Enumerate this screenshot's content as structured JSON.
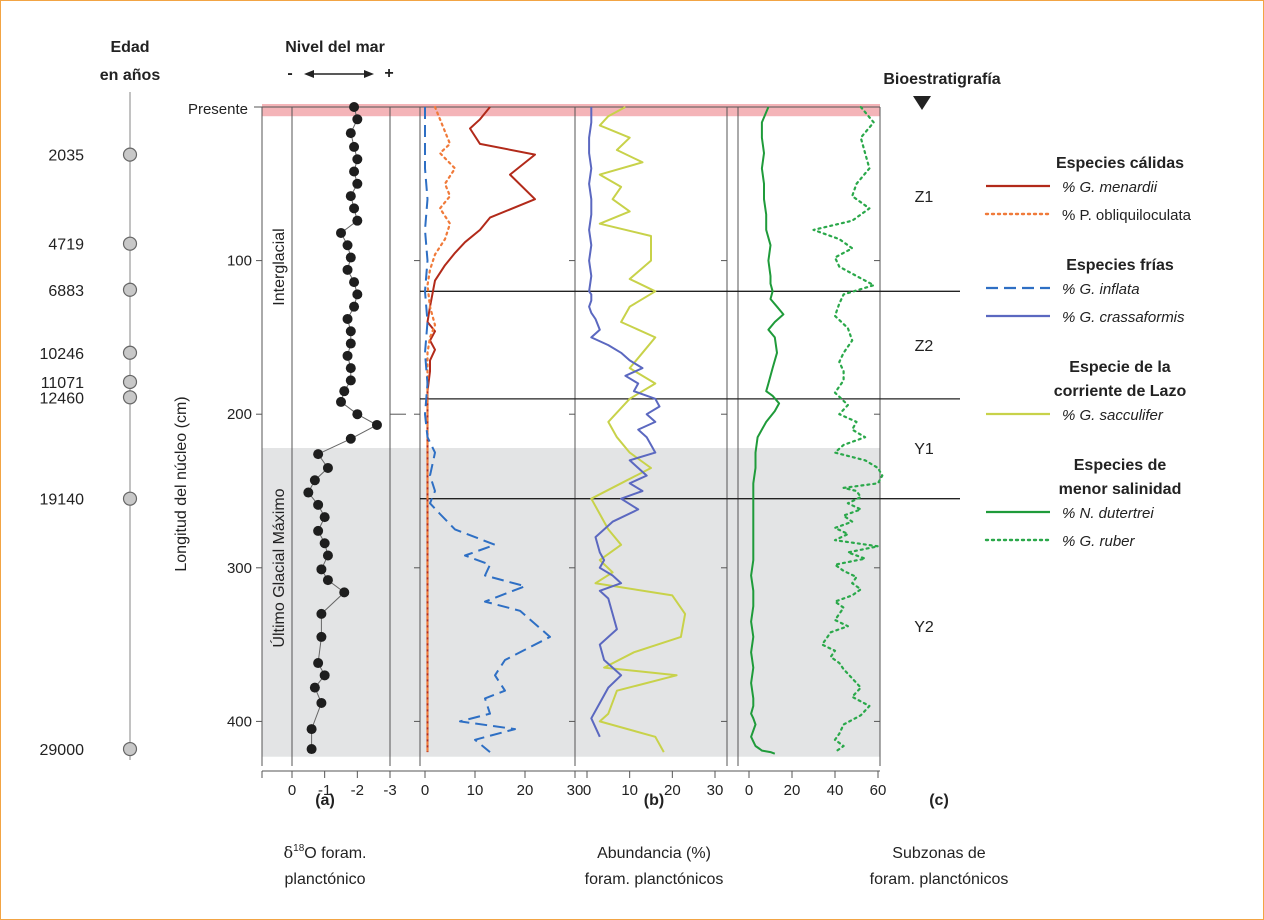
{
  "labels": {
    "age_header_1": "Edad",
    "age_header_2": "en años",
    "sea_level_header": "Nivel del mar",
    "sea_minus": "-",
    "sea_plus": "+",
    "bio_header": "Bioestratigrafía",
    "y_axis": "Longitud del núcleo (cm)",
    "presente": "Presente",
    "interglacial": "Interglacial",
    "lgm": "Último Glacial Máximo",
    "panel_a": "(a)",
    "panel_b": "(b)",
    "panel_c": "(c)",
    "xlabel_a_1": "δ",
    "xlabel_a_sup": "18",
    "xlabel_a_2": "O foram.",
    "xlabel_a_3": "planctónico",
    "xlabel_b_1": "Abundancia (%)",
    "xlabel_b_2": "foram. planctónicos",
    "xlabel_c_1": "Subzonas de",
    "xlabel_c_2": "foram. planctónicos"
  },
  "legend": {
    "groups": [
      {
        "title": [
          "Especies cálidas"
        ],
        "items": [
          {
            "label": "% G. menardii",
            "color": "#b22a1a",
            "style": "solid",
            "italic": true
          },
          {
            "label": "% P. obliquiloculata",
            "color": "#f07a3a",
            "style": "dotted",
            "italic": false
          }
        ]
      },
      {
        "title": [
          "Especies frías"
        ],
        "items": [
          {
            "label": "% G. inflata",
            "color": "#2e6fc4",
            "style": "dashed",
            "italic": true
          },
          {
            "label": "% G. crassaformis",
            "color": "#5b68c0",
            "style": "solid",
            "italic": true
          }
        ]
      },
      {
        "title": [
          "Especie de la",
          "corriente de Lazo"
        ],
        "items": [
          {
            "label": "% G. sacculifer",
            "color": "#c8d24a",
            "style": "solid",
            "italic": true
          }
        ]
      },
      {
        "title": [
          "Especies de",
          "menor salinidad"
        ],
        "items": [
          {
            "label": "% N. dutertrei",
            "color": "#1f9b3a",
            "style": "solid",
            "italic": true
          },
          {
            "label": "% G. ruber",
            "color": "#2aa84a",
            "style": "dotted",
            "italic": true
          }
        ]
      }
    ]
  },
  "chart_data": {
    "type": "line",
    "y_axis": {
      "label": "Longitud del núcleo (cm)",
      "range": [
        0,
        430
      ],
      "ticks": [
        100,
        200,
        300,
        400
      ],
      "tick_labels": [
        "100",
        "200",
        "300",
        "400"
      ],
      "inverted": true
    },
    "ages": [
      {
        "age": "2035",
        "depth": 31
      },
      {
        "age": "4719",
        "depth": 89
      },
      {
        "age": "6883",
        "depth": 119
      },
      {
        "age": "10246",
        "depth": 160
      },
      {
        "age": "11071",
        "depth": 179
      },
      {
        "age": "12460",
        "depth": 189
      },
      {
        "age": "19140",
        "depth": 255
      },
      {
        "age": "29000",
        "depth": 418
      }
    ],
    "zone_boundaries": [
      120,
      190,
      255
    ],
    "zones": [
      {
        "label": "Z1",
        "depth": 58
      },
      {
        "label": "Z2",
        "depth": 155
      },
      {
        "label": "Y1",
        "depth": 222
      },
      {
        "label": "Y2",
        "depth": 338
      }
    ],
    "shaded_lgm": [
      222,
      423
    ],
    "present_band": [
      0,
      6
    ],
    "panels": [
      {
        "id": "a",
        "xlim": [
          1,
          -3
        ],
        "xticks": [
          0,
          -1,
          -2,
          -3
        ],
        "xtick_labels": [
          "0",
          "-1",
          "-2",
          "-3"
        ],
        "series": [
          {
            "name": "δ18O",
            "color": "#222222",
            "style": "solid-markers",
            "x": [
              -1.9,
              -2.0,
              -1.8,
              -1.9,
              -2.0,
              -1.9,
              -2.0,
              -1.8,
              -1.9,
              -2.0,
              -1.5,
              -1.7,
              -1.8,
              -1.7,
              -1.9,
              -2.0,
              -1.9,
              -1.7,
              -1.8,
              -1.8,
              -1.7,
              -1.8,
              -1.8,
              -1.6,
              -1.5,
              -2.0,
              -2.6,
              -1.8,
              -0.8,
              -1.1,
              -0.7,
              -0.5,
              -0.8,
              -1.0,
              -0.8,
              -1.0,
              -1.1,
              -0.9,
              -1.1,
              -1.6,
              -0.9,
              -0.9,
              -0.8,
              -1.0,
              -0.7,
              -0.9,
              -0.6,
              -0.6
            ],
            "y": [
              0,
              8,
              17,
              26,
              34,
              42,
              50,
              58,
              66,
              74,
              82,
              90,
              98,
              106,
              114,
              122,
              130,
              138,
              146,
              154,
              162,
              170,
              178,
              185,
              192,
              200,
              207,
              216,
              226,
              235,
              243,
              251,
              259,
              267,
              276,
              284,
              292,
              301,
              308,
              316,
              330,
              345,
              362,
              370,
              378,
              388,
              405,
              418
            ]
          }
        ]
      },
      {
        "id": "b1",
        "xlim": [
          0,
          30
        ],
        "xticks": [
          0,
          10,
          20,
          30
        ],
        "xtick_labels": [
          "0",
          "10",
          "20",
          "30"
        ],
        "series": [
          {
            "name": "% G. menardii",
            "color": "#b22a1a",
            "style": "solid",
            "x": [
              13,
              11,
              9,
              11,
              22,
              17,
              22,
              13,
              11,
              8,
              6,
              4,
              2,
              1,
              0.5,
              2,
              1,
              2,
              1,
              1,
              0.5,
              0.5,
              0.5,
              0.5,
              0.5,
              0.5
            ],
            "y": [
              0,
              8,
              14,
              24,
              31,
              44,
              60,
              72,
              80,
              88,
              95,
              103,
              113,
              130,
              140,
              146,
              152,
              158,
              165,
              172,
              185,
              200,
              250,
              300,
              380,
              420
            ]
          },
          {
            "name": "% P. obliquiloculata",
            "color": "#f07a3a",
            "style": "dotted",
            "x": [
              2,
              3,
              4,
              5,
              3,
              6,
              4,
              5,
              3,
              5,
              4,
              2,
              1,
              0.5,
              1,
              2,
              1,
              0.5,
              0.5,
              0.5,
              0.5,
              0.5
            ],
            "y": [
              0,
              8,
              16,
              24,
              30,
              40,
              50,
              58,
              66,
              76,
              86,
              96,
              106,
              116,
              130,
              142,
              150,
              160,
              175,
              200,
              300,
              420
            ]
          },
          {
            "name": "% G. inflata",
            "color": "#2e6fc4",
            "style": "dashed",
            "x": [
              0,
              0,
              0,
              0.5,
              0,
              0.5,
              0,
              0.5,
              0,
              0.5,
              0,
              0.5,
              2,
              1,
              2,
              1,
              3,
              6,
              14,
              8,
              13,
              12,
              20,
              12,
              19,
              25,
              16,
              14,
              16,
              12,
              13,
              7,
              18,
              10,
              13
            ],
            "y": [
              0,
              20,
              40,
              60,
              80,
              100,
              120,
              140,
              160,
              180,
              200,
              215,
              225,
              240,
              250,
              258,
              265,
              275,
              285,
              292,
              298,
              305,
              312,
              322,
              328,
              345,
              360,
              370,
              380,
              385,
              395,
              400,
              405,
              412,
              420
            ]
          }
        ]
      },
      {
        "id": "b2",
        "xlim": [
          0,
          30
        ],
        "xticks": [
          0,
          10,
          20,
          30
        ],
        "xtick_labels": [
          "0",
          "10",
          "20",
          "30"
        ],
        "series": [
          {
            "name": "% G. sacculifer",
            "color": "#c8d24a",
            "style": "solid",
            "x": [
              9,
              5,
              3,
              10,
              7,
              13,
              3,
              8,
              6,
              10,
              3,
              15,
              15,
              10,
              16,
              10,
              8,
              16,
              13,
              10,
              16,
              10,
              8,
              5,
              7,
              10,
              15,
              8,
              1,
              3,
              5,
              8,
              3,
              6,
              2,
              20,
              23,
              22,
              11,
              4,
              21,
              7,
              5,
              3,
              16,
              18
            ],
            "y": [
              0,
              6,
              12,
              20,
              28,
              36,
              44,
              52,
              60,
              68,
              76,
              84,
              100,
              112,
              120,
              130,
              140,
              150,
              160,
              170,
              180,
              190,
              196,
              205,
              215,
              225,
              235,
              245,
              255,
              265,
              275,
              285,
              295,
              303,
              310,
              318,
              330,
              345,
              355,
              365,
              370,
              380,
              395,
              400,
              410,
              420
            ]
          },
          {
            "name": "% G. crassaformis",
            "color": "#5b68c0",
            "style": "solid",
            "x": [
              1,
              1,
              0.5,
              0.5,
              1,
              0.5,
              1,
              1,
              0.5,
              1,
              0.5,
              1,
              0.5,
              1,
              1,
              0.5,
              1,
              2,
              3,
              1,
              5,
              8,
              10,
              13,
              9,
              12,
              11,
              16,
              17,
              14,
              16,
              12,
              14,
              15,
              16,
              10,
              12,
              14,
              10,
              13,
              8,
              12,
              6,
              2,
              3,
              4,
              3,
              6,
              8,
              3,
              5,
              6,
              7,
              3,
              4,
              8,
              5,
              3,
              1,
              3
            ],
            "y": [
              0,
              10,
              20,
              30,
              40,
              50,
              60,
              70,
              80,
              90,
              100,
              110,
              120,
              122,
              126,
              130,
              134,
              138,
              145,
              150,
              155,
              160,
              165,
              170,
              175,
              180,
              185,
              190,
              195,
              200,
              205,
              210,
              215,
              220,
              225,
              230,
              235,
              240,
              245,
              250,
              255,
              262,
              270,
              280,
              290,
              295,
              300,
              305,
              310,
              315,
              320,
              330,
              340,
              350,
              360,
              370,
              378,
              388,
              398,
              410
            ]
          }
        ]
      },
      {
        "id": "c",
        "xlim": [
          0,
          64
        ],
        "xticks": [
          0,
          20,
          40,
          60
        ],
        "xtick_labels": [
          "0",
          "20",
          "40",
          "60"
        ],
        "series": [
          {
            "name": "% N. dutertrei",
            "color": "#1f9b3a",
            "style": "solid",
            "x": [
              9,
              6,
              6,
              7,
              6,
              7,
              7,
              8,
              8,
              10,
              9,
              10,
              10,
              11,
              10,
              13,
              16,
              12,
              9,
              12,
              13,
              11,
              9,
              8,
              11,
              14,
              12,
              8,
              4,
              3,
              3,
              2,
              2,
              2,
              2,
              2,
              2,
              1,
              2,
              2,
              1,
              2,
              1,
              2,
              1,
              2,
              2,
              1,
              2,
              3,
              2,
              1,
              2,
              3,
              5,
              6,
              10,
              12
            ],
            "y": [
              0,
              10,
              20,
              30,
              40,
              50,
              60,
              70,
              80,
              90,
              100,
              110,
              115,
              120,
              125,
              130,
              135,
              140,
              145,
              150,
              160,
              170,
              180,
              185,
              188,
              193,
              198,
              205,
              215,
              225,
              235,
              245,
              255,
              265,
              275,
              285,
              295,
              305,
              315,
              325,
              335,
              345,
              355,
              365,
              375,
              385,
              390,
              395,
              398,
              402,
              406,
              410,
              413,
              416,
              418,
              419,
              420,
              421
            ]
          },
          {
            "name": "% G. ruber",
            "color": "#2aa84a",
            "style": "dotted",
            "x": [
              52,
              58,
              52,
              54,
              56,
              50,
              48,
              56,
              48,
              30,
              42,
              48,
              40,
              42,
              50,
              58,
              44,
              42,
              40,
              46,
              48,
              44,
              42,
              44,
              44,
              40,
              46,
              42,
              50,
              48,
              54,
              44,
              40,
              54,
              60,
              62,
              60,
              44,
              50,
              52,
              46,
              52,
              44,
              48,
              40,
              46,
              40,
              60,
              46,
              54,
              40,
              44,
              50,
              48,
              52,
              48,
              40,
              44,
              42,
              40,
              46,
              38,
              36,
              34,
              40,
              38,
              42,
              44,
              48,
              52,
              48,
              56,
              52,
              44,
              42,
              40,
              44,
              40
            ],
            "y": [
              0,
              10,
              20,
              30,
              40,
              50,
              58,
              66,
              74,
              80,
              86,
              92,
              98,
              104,
              110,
              116,
              122,
              128,
              136,
              144,
              152,
              160,
              166,
              172,
              178,
              186,
              194,
              200,
              205,
              210,
              215,
              220,
              225,
              230,
              235,
              240,
              245,
              248,
              250,
              254,
              258,
              262,
              266,
              270,
              274,
              278,
              282,
              286,
              290,
              294,
              298,
              302,
              306,
              310,
              314,
              318,
              322,
              326,
              330,
              334,
              338,
              342,
              346,
              350,
              354,
              358,
              362,
              366,
              372,
              378,
              384,
              390,
              396,
              402,
              408,
              412,
              416,
              420
            ]
          }
        ]
      }
    ]
  }
}
